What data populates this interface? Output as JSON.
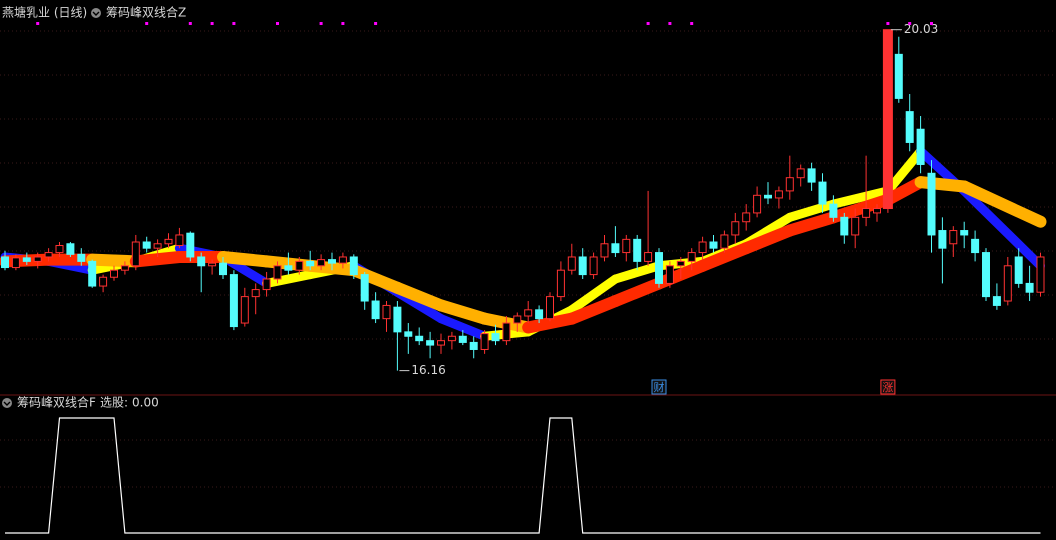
{
  "chart_data": [
    {
      "type": "candlestick",
      "title": "燕塘乳业 (日线)",
      "subtitle": "筹码峰双线合Z",
      "ylim": [
        15.94,
        20.14
      ],
      "up_color": "#ff3232",
      "down_color": "#54fcfc",
      "signal_color": "#ff00ff",
      "high_label": "20.03",
      "low_label": "16.16",
      "ohlc": [
        [
          17.45,
          17.52,
          17.3,
          17.33
        ],
        [
          17.33,
          17.48,
          17.3,
          17.44
        ],
        [
          17.44,
          17.5,
          17.36,
          17.4
        ],
        [
          17.4,
          17.5,
          17.32,
          17.45
        ],
        [
          17.45,
          17.55,
          17.4,
          17.5
        ],
        [
          17.5,
          17.62,
          17.45,
          17.58
        ],
        [
          17.6,
          17.62,
          17.45,
          17.48
        ],
        [
          17.48,
          17.55,
          17.35,
          17.4
        ],
        [
          17.4,
          17.42,
          17.1,
          17.12
        ],
        [
          17.12,
          17.25,
          17.05,
          17.22
        ],
        [
          17.22,
          17.35,
          17.18,
          17.3
        ],
        [
          17.3,
          17.4,
          17.25,
          17.35
        ],
        [
          17.35,
          17.7,
          17.3,
          17.62
        ],
        [
          17.62,
          17.68,
          17.5,
          17.55
        ],
        [
          17.55,
          17.65,
          17.45,
          17.6
        ],
        [
          17.6,
          17.72,
          17.55,
          17.65
        ],
        [
          17.58,
          17.78,
          17.55,
          17.7
        ],
        [
          17.72,
          17.74,
          17.4,
          17.45
        ],
        [
          17.45,
          17.5,
          17.05,
          17.35
        ],
        [
          17.35,
          17.42,
          17.25,
          17.38
        ],
        [
          17.38,
          17.45,
          17.2,
          17.25
        ],
        [
          17.25,
          17.3,
          16.62,
          16.66
        ],
        [
          16.7,
          17.1,
          16.66,
          17.0
        ],
        [
          17.0,
          17.15,
          16.8,
          17.08
        ],
        [
          17.08,
          17.28,
          17.0,
          17.2
        ],
        [
          17.2,
          17.4,
          17.15,
          17.35
        ],
        [
          17.35,
          17.5,
          17.25,
          17.3
        ],
        [
          17.3,
          17.45,
          17.25,
          17.4
        ],
        [
          17.4,
          17.52,
          17.3,
          17.35
        ],
        [
          17.35,
          17.48,
          17.3,
          17.42
        ],
        [
          17.42,
          17.5,
          17.3,
          17.38
        ],
        [
          17.38,
          17.5,
          17.32,
          17.45
        ],
        [
          17.45,
          17.48,
          17.2,
          17.25
        ],
        [
          17.25,
          17.28,
          16.85,
          16.95
        ],
        [
          16.95,
          17.05,
          16.7,
          16.75
        ],
        [
          16.75,
          16.95,
          16.6,
          16.9
        ],
        [
          16.88,
          16.95,
          16.16,
          16.6
        ],
        [
          16.6,
          16.7,
          16.35,
          16.55
        ],
        [
          16.55,
          16.65,
          16.45,
          16.5
        ],
        [
          16.5,
          16.6,
          16.3,
          16.45
        ],
        [
          16.45,
          16.58,
          16.35,
          16.5
        ],
        [
          16.5,
          16.6,
          16.4,
          16.55
        ],
        [
          16.55,
          16.62,
          16.45,
          16.48
        ],
        [
          16.48,
          16.55,
          16.3,
          16.4
        ],
        [
          16.4,
          16.62,
          16.35,
          16.58
        ],
        [
          16.58,
          16.68,
          16.45,
          16.5
        ],
        [
          16.5,
          16.78,
          16.45,
          16.7
        ],
        [
          16.7,
          16.82,
          16.6,
          16.78
        ],
        [
          16.78,
          16.95,
          16.7,
          16.85
        ],
        [
          16.85,
          16.9,
          16.7,
          16.75
        ],
        [
          16.75,
          17.05,
          16.72,
          17.0
        ],
        [
          17.0,
          17.4,
          16.95,
          17.3
        ],
        [
          17.3,
          17.6,
          17.25,
          17.45
        ],
        [
          17.45,
          17.55,
          17.2,
          17.25
        ],
        [
          17.25,
          17.5,
          17.2,
          17.45
        ],
        [
          17.45,
          17.7,
          17.4,
          17.6
        ],
        [
          17.6,
          17.8,
          17.45,
          17.5
        ],
        [
          17.5,
          17.7,
          17.4,
          17.65
        ],
        [
          17.65,
          17.7,
          17.3,
          17.4
        ],
        [
          17.4,
          18.2,
          17.35,
          17.5
        ],
        [
          17.5,
          17.55,
          17.1,
          17.15
        ],
        [
          17.15,
          17.4,
          17.1,
          17.35
        ],
        [
          17.35,
          17.45,
          17.2,
          17.4
        ],
        [
          17.4,
          17.55,
          17.3,
          17.5
        ],
        [
          17.5,
          17.68,
          17.42,
          17.62
        ],
        [
          17.62,
          17.7,
          17.5,
          17.55
        ],
        [
          17.55,
          17.75,
          17.5,
          17.7
        ],
        [
          17.7,
          17.95,
          17.6,
          17.85
        ],
        [
          17.85,
          18.05,
          17.75,
          17.95
        ],
        [
          17.95,
          18.25,
          17.9,
          18.15
        ],
        [
          18.15,
          18.3,
          18.05,
          18.12
        ],
        [
          18.12,
          18.25,
          18.0,
          18.2
        ],
        [
          18.2,
          18.6,
          18.1,
          18.35
        ],
        [
          18.35,
          18.5,
          18.25,
          18.45
        ],
        [
          18.45,
          18.52,
          18.2,
          18.3
        ],
        [
          18.3,
          18.4,
          17.95,
          18.05
        ],
        [
          18.05,
          18.15,
          17.85,
          17.9
        ],
        [
          17.9,
          17.95,
          17.6,
          17.7
        ],
        [
          17.7,
          18.0,
          17.55,
          17.9
        ],
        [
          17.9,
          18.6,
          17.8,
          18.0
        ],
        [
          17.95,
          18.05,
          17.85,
          18.0
        ],
        [
          18.0,
          20.03,
          17.95,
          20.03
        ],
        [
          19.75,
          19.95,
          19.2,
          19.25
        ],
        [
          19.1,
          19.3,
          18.65,
          18.75
        ],
        [
          18.9,
          19.05,
          18.4,
          18.5
        ],
        [
          18.4,
          18.55,
          17.5,
          17.7
        ],
        [
          17.75,
          17.9,
          17.15,
          17.55
        ],
        [
          17.6,
          17.8,
          17.45,
          17.75
        ],
        [
          17.75,
          17.85,
          17.55,
          17.7
        ],
        [
          17.65,
          17.75,
          17.4,
          17.5
        ],
        [
          17.5,
          17.55,
          16.95,
          17.0
        ],
        [
          17.0,
          17.15,
          16.85,
          16.9
        ],
        [
          16.95,
          17.45,
          16.9,
          17.35
        ],
        [
          17.45,
          17.55,
          17.1,
          17.15
        ],
        [
          17.15,
          17.35,
          16.95,
          17.05
        ],
        [
          17.05,
          17.5,
          17.0,
          17.45
        ]
      ],
      "series": [
        {
          "color_up": "#ffff00",
          "color_down": "#1a1aff",
          "x": [
            0,
            4,
            8,
            12,
            16,
            20,
            24,
            28,
            32,
            36,
            40,
            44,
            48,
            52,
            56,
            60,
            64,
            68,
            72,
            76,
            81,
            84,
            88,
            95
          ],
          "values": [
            17.45,
            17.4,
            17.3,
            17.4,
            17.55,
            17.45,
            17.15,
            17.25,
            17.35,
            17.05,
            16.75,
            16.55,
            16.6,
            16.85,
            17.2,
            17.35,
            17.4,
            17.6,
            17.9,
            18.05,
            18.2,
            18.65,
            18.2,
            17.35
          ]
        },
        {
          "color_up": "#ff2a00",
          "color_down": "#ffb000",
          "x": [
            0,
            4,
            8,
            12,
            16,
            20,
            24,
            28,
            32,
            36,
            40,
            44,
            48,
            52,
            56,
            60,
            64,
            68,
            72,
            76,
            81,
            84,
            88,
            95
          ],
          "values": [
            17.4,
            17.42,
            17.42,
            17.4,
            17.45,
            17.45,
            17.4,
            17.35,
            17.3,
            17.1,
            16.9,
            16.75,
            16.65,
            16.75,
            16.95,
            17.15,
            17.35,
            17.55,
            17.75,
            17.9,
            18.1,
            18.3,
            18.25,
            17.85
          ]
        }
      ],
      "signals": [
        3,
        13,
        17,
        19,
        21,
        25,
        29,
        31,
        34,
        59,
        61,
        63,
        81,
        83,
        85
      ],
      "events": [
        {
          "index": 60,
          "label": "财",
          "color": "#3a8ee6"
        },
        {
          "index": 81,
          "label": "涨",
          "color": "#ff3232"
        }
      ]
    },
    {
      "type": "line",
      "title": "筹码峰双线合F",
      "value_name": "选股:",
      "value": 0,
      "value_label": "0.00",
      "ylim": [
        0,
        1
      ],
      "color": "#ffffff",
      "values": [
        0,
        0,
        0,
        0,
        0,
        1,
        1,
        1,
        1,
        1,
        1,
        0,
        0,
        0,
        0,
        0,
        0,
        0,
        0,
        0,
        0,
        0,
        0,
        0,
        0,
        0,
        0,
        0,
        0,
        0,
        0,
        0,
        0,
        0,
        0,
        0,
        0,
        0,
        0,
        0,
        0,
        0,
        0,
        0,
        0,
        0,
        0,
        0,
        0,
        0,
        1,
        1,
        1,
        0,
        0,
        0,
        0,
        0,
        0,
        0,
        0,
        0,
        0,
        0,
        0,
        0,
        0,
        0,
        0,
        0,
        0,
        0,
        0,
        0,
        0,
        0,
        0,
        0,
        0,
        0,
        0,
        0,
        0,
        0,
        0,
        0,
        0,
        0,
        0,
        0,
        0,
        0,
        0,
        0,
        0,
        0
      ]
    }
  ]
}
